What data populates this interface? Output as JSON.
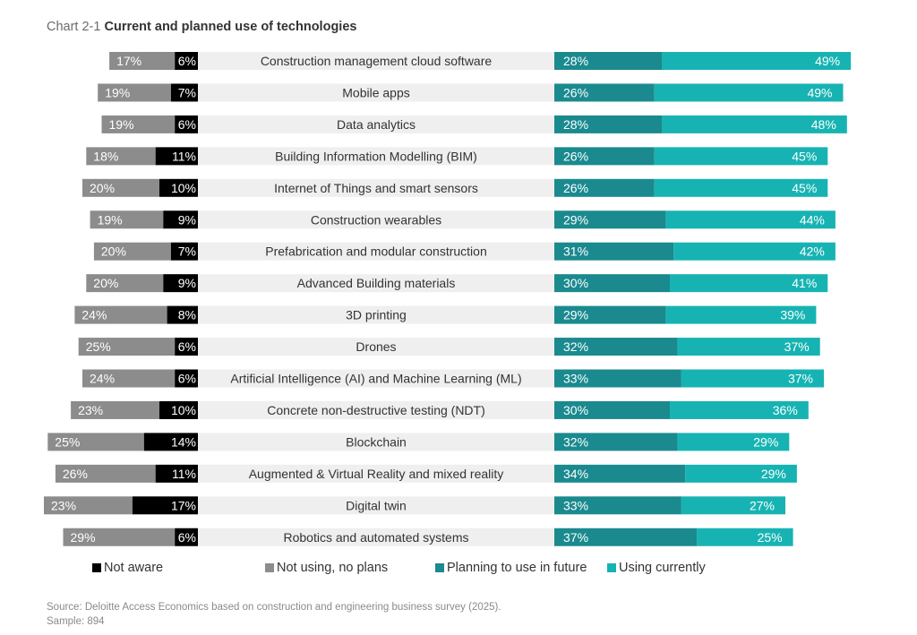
{
  "title": {
    "prefix": "Chart 2-1",
    "main": "Current and planned use of technologies"
  },
  "colors": {
    "not_aware": "#000000",
    "not_using": "#8c8c8c",
    "planning": "#1a8a8f",
    "using": "#17b3b3",
    "row_band": "#efefef"
  },
  "chart_data": {
    "type": "bar",
    "orientation": "horizontal",
    "stacked": "diverging",
    "title": "Current and planned use of technologies",
    "categories": [
      "Construction management cloud software",
      "Mobile apps",
      "Data analytics",
      "Building Information Modelling (BIM)",
      "Internet of Things and smart  sensors",
      "Construction wearables",
      "Prefabrication and modular construction",
      "Advanced Building materials",
      "3D printing",
      "Drones",
      "Artificial Intelligence (AI) and Machine Learning (ML)",
      "Concrete non-destructive testing (NDT)",
      "Blockchain",
      "Augmented & Virtual Reality and mixed reality",
      "Digital twin",
      "Robotics and automated systems"
    ],
    "series": [
      {
        "name": "Not aware",
        "values": [
          6,
          7,
          6,
          11,
          10,
          9,
          7,
          9,
          8,
          6,
          6,
          10,
          14,
          11,
          17,
          6
        ]
      },
      {
        "name": "Not using, no plans",
        "values": [
          17,
          19,
          19,
          18,
          20,
          19,
          20,
          20,
          24,
          25,
          24,
          23,
          25,
          26,
          23,
          29
        ]
      },
      {
        "name": "Planning to use in future",
        "values": [
          28,
          26,
          28,
          26,
          26,
          29,
          31,
          30,
          29,
          32,
          33,
          30,
          32,
          34,
          33,
          37
        ]
      },
      {
        "name": "Using currently",
        "values": [
          49,
          49,
          48,
          45,
          45,
          44,
          42,
          41,
          39,
          37,
          37,
          36,
          29,
          29,
          27,
          25
        ]
      }
    ],
    "value_suffix": "%"
  },
  "legend": {
    "not_aware": "Not aware",
    "not_using": "Not using, no plans",
    "planning": "Planning to use in future",
    "using": "Using currently"
  },
  "source": {
    "line1": "Source: Deloitte Access Economics based on construction and engineering business survey (2025).",
    "line2": "Sample: 894"
  }
}
